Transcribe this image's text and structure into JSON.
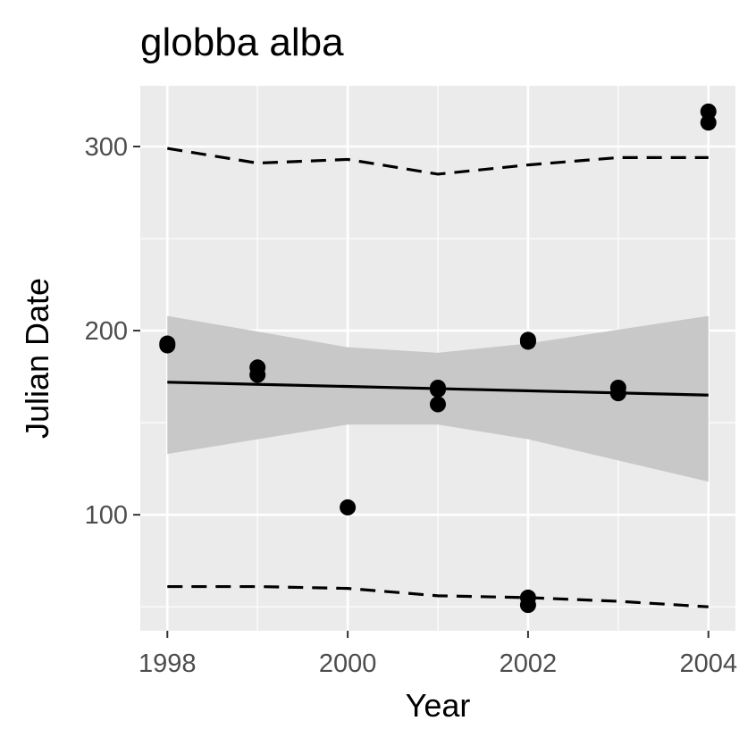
{
  "chart_data": {
    "type": "scatter",
    "title": "globba alba",
    "xlabel": "Year",
    "ylabel": "Julian Date",
    "xlim": [
      1997.7,
      2004.3
    ],
    "ylim": [
      37,
      333
    ],
    "x_ticks": [
      1998,
      2000,
      2002,
      2004
    ],
    "x_tick_labels": [
      "1998",
      "2000",
      "2002",
      "2004"
    ],
    "y_ticks": [
      100,
      200,
      300
    ],
    "y_tick_labels": [
      "100",
      "200",
      "300"
    ],
    "grid": true,
    "background": "#ebebeb",
    "points": [
      {
        "x": 1998,
        "y": 192
      },
      {
        "x": 1998,
        "y": 193
      },
      {
        "x": 1999,
        "y": 176
      },
      {
        "x": 1999,
        "y": 180
      },
      {
        "x": 2000,
        "y": 104
      },
      {
        "x": 2001,
        "y": 160
      },
      {
        "x": 2001,
        "y": 168
      },
      {
        "x": 2001,
        "y": 169
      },
      {
        "x": 2002,
        "y": 194
      },
      {
        "x": 2002,
        "y": 195
      },
      {
        "x": 2002,
        "y": 55
      },
      {
        "x": 2002,
        "y": 51
      },
      {
        "x": 2003,
        "y": 166
      },
      {
        "x": 2003,
        "y": 169
      },
      {
        "x": 2004,
        "y": 313
      },
      {
        "x": 2004,
        "y": 319
      }
    ],
    "fit_line": [
      {
        "x": 1998,
        "y": 172
      },
      {
        "x": 2004,
        "y": 165
      }
    ],
    "confidence_band": {
      "upper": [
        {
          "x": 1998,
          "y": 208
        },
        {
          "x": 2000,
          "y": 191
        },
        {
          "x": 2001,
          "y": 188
        },
        {
          "x": 2002,
          "y": 193
        },
        {
          "x": 2004,
          "y": 208
        }
      ],
      "lower": [
        {
          "x": 1998,
          "y": 133
        },
        {
          "x": 2000,
          "y": 149
        },
        {
          "x": 2001,
          "y": 149
        },
        {
          "x": 2002,
          "y": 141
        },
        {
          "x": 2004,
          "y": 118
        }
      ]
    },
    "dashed_upper": [
      {
        "x": 1998,
        "y": 299
      },
      {
        "x": 1999,
        "y": 291
      },
      {
        "x": 2000,
        "y": 293
      },
      {
        "x": 2001,
        "y": 285
      },
      {
        "x": 2002,
        "y": 290
      },
      {
        "x": 2003,
        "y": 294
      },
      {
        "x": 2004,
        "y": 294
      }
    ],
    "dashed_lower": [
      {
        "x": 1998,
        "y": 61
      },
      {
        "x": 1999,
        "y": 61
      },
      {
        "x": 2000,
        "y": 60
      },
      {
        "x": 2001,
        "y": 56
      },
      {
        "x": 2002,
        "y": 55
      },
      {
        "x": 2003,
        "y": 53
      },
      {
        "x": 2004,
        "y": 50
      }
    ],
    "colors": {
      "points": "#000000",
      "fit_line": "#000000",
      "band": "#c8c8c8",
      "dashed": "#000000",
      "grid": "#ffffff"
    }
  }
}
